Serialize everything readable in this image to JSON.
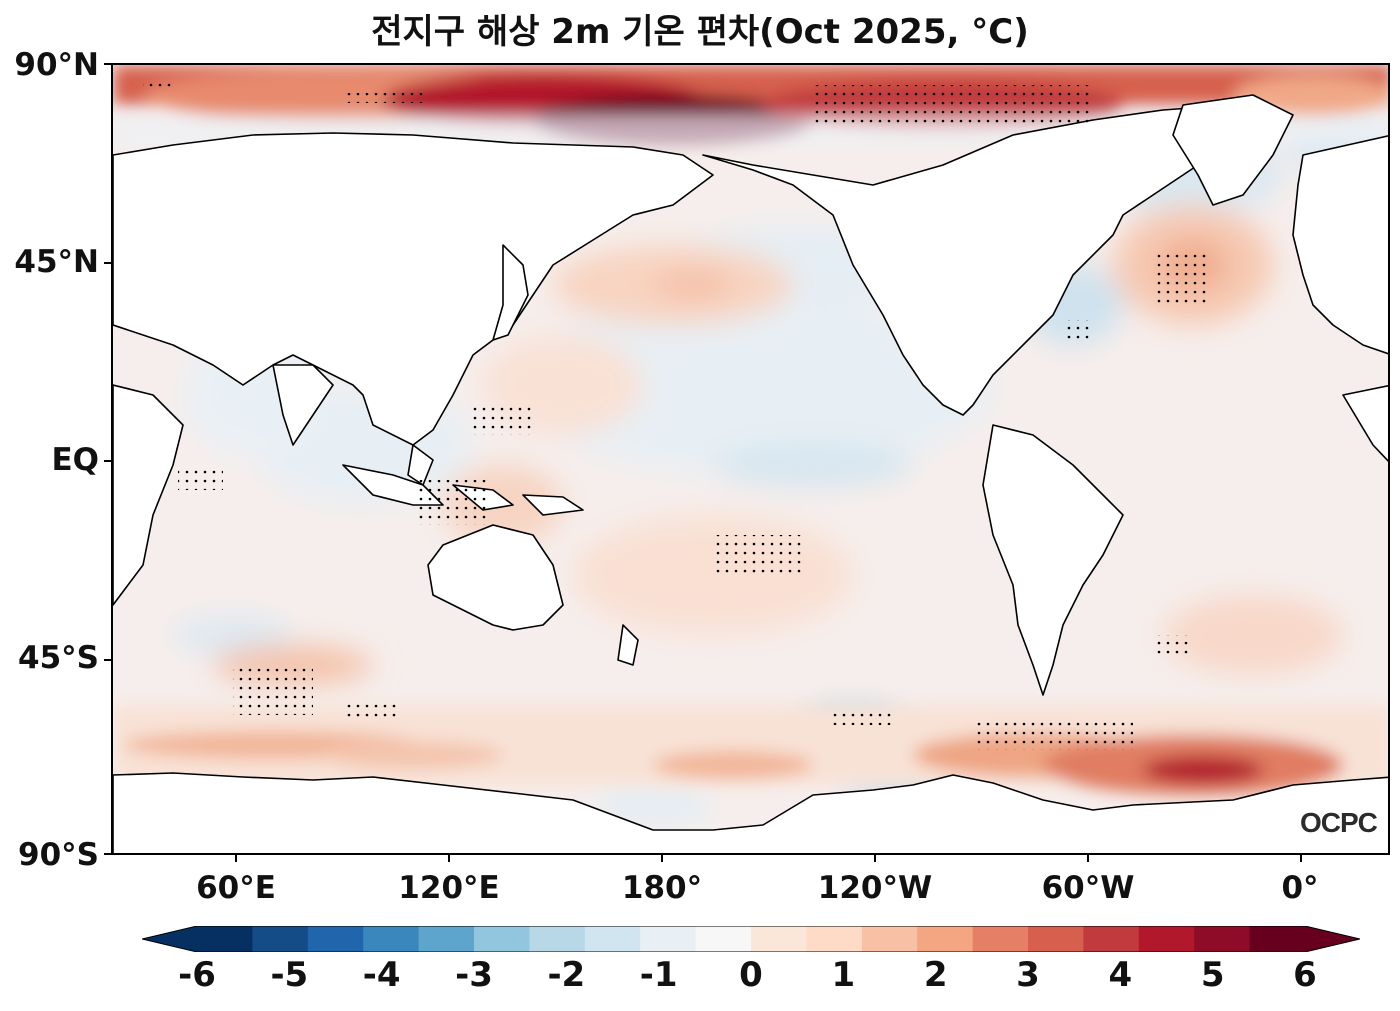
{
  "title": "전지구 해상 2m 기온 편차(Oct 2025, °C)",
  "lat_labels": [
    "90°N",
    "45°N",
    "EQ",
    "45°S",
    "90°S"
  ],
  "lon_labels": [
    "60°E",
    "120°E",
    "180°",
    "120°W",
    "60°W",
    "0°"
  ],
  "colorbar": {
    "ticks": [
      "-6",
      "-5",
      "-4",
      "-3",
      "-2",
      "-1",
      "0",
      "1",
      "2",
      "3",
      "4",
      "5",
      "6"
    ],
    "colors": [
      "#053061",
      "#134c87",
      "#2166ac",
      "#3a87bd",
      "#5da5cd",
      "#92c5de",
      "#b8d8e8",
      "#d1e5f0",
      "#e8f0f5",
      "#f7f7f7",
      "#fbe6da",
      "#fddbc7",
      "#f8c1a5",
      "#f4a582",
      "#e58066",
      "#d6604d",
      "#c13a3e",
      "#b2182b",
      "#8e0c27",
      "#67001f"
    ]
  },
  "logo": "OCPC"
}
